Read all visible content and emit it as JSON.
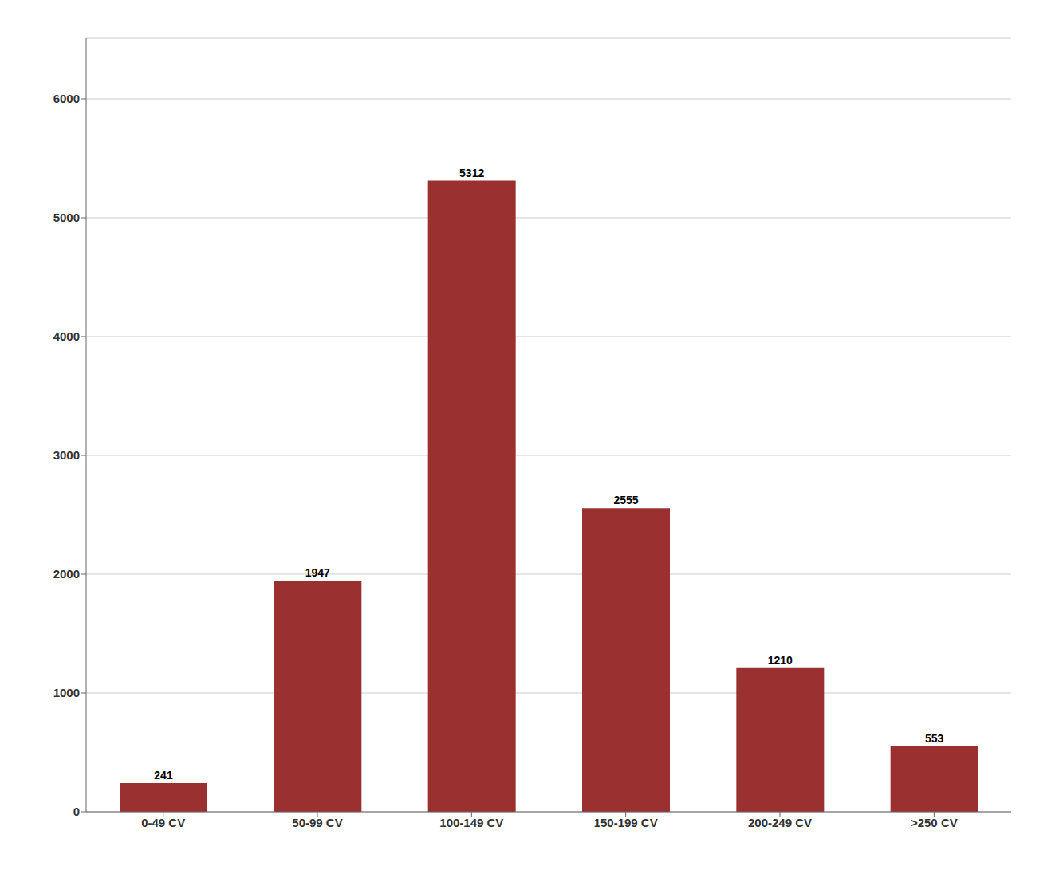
{
  "chart_data": {
    "type": "bar",
    "categories": [
      "0-49 CV",
      "50-99 CV",
      "100-149 CV",
      "150-199 CV",
      "200-249 CV",
      ">250 CV"
    ],
    "values": [
      241,
      1947,
      5312,
      2555,
      1210,
      553
    ],
    "color": "#9B3030",
    "ylim": [
      0,
      6510
    ],
    "yticks": [
      0,
      1000,
      2000,
      3000,
      4000,
      5000,
      6000
    ],
    "grid": true,
    "data_labels": true
  }
}
